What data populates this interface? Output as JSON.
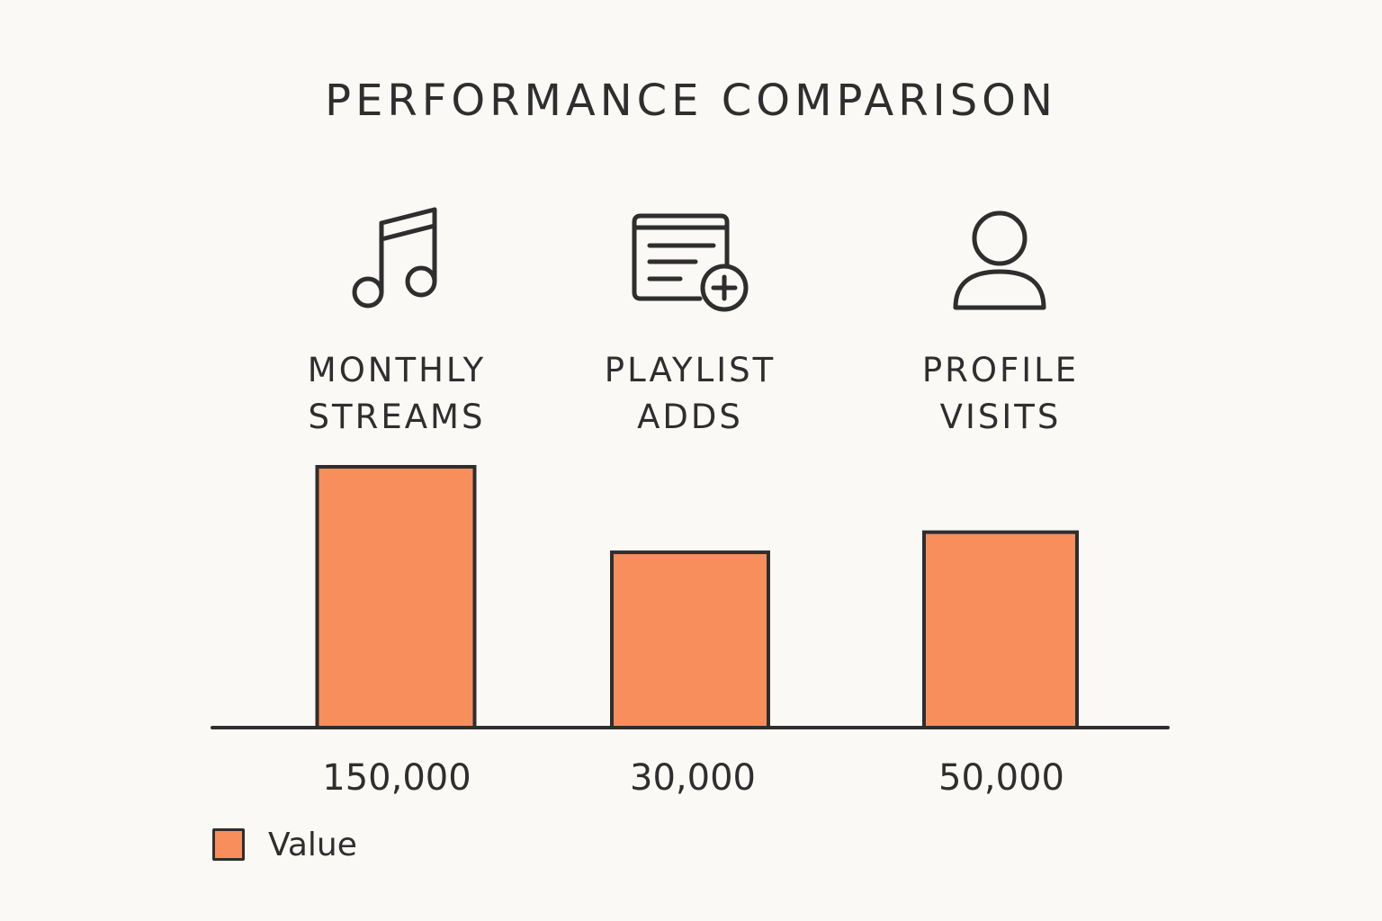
{
  "chart_data": {
    "type": "bar",
    "title": "PERFORMANCE COMPARISON",
    "categories": [
      {
        "lines": [
          "MONTHLY",
          "STREAMS"
        ],
        "icon": "music-note-icon"
      },
      {
        "lines": [
          "PLAYLIST",
          "ADDS"
        ],
        "icon": "playlist-add-icon"
      },
      {
        "lines": [
          "PROFILE",
          "VISITS"
        ],
        "icon": "user-profile-icon"
      }
    ],
    "series": [
      {
        "name": "Value",
        "values": [
          150000,
          30000,
          50000
        ]
      }
    ],
    "value_labels": [
      "150,000",
      "30,000",
      "50,000"
    ],
    "legend": {
      "label": "Value",
      "placement": "bottom-left"
    },
    "grid": false,
    "bar_color": "#f78e5c",
    "outline_color": "#2e2e2e"
  }
}
